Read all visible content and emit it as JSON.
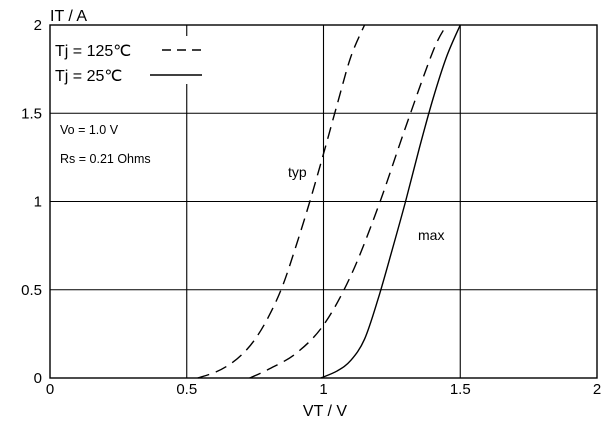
{
  "chart_data": {
    "type": "line",
    "xlabel": "VT / V",
    "ylabel": "IT / A",
    "xlim": [
      0,
      2
    ],
    "ylim": [
      0,
      2
    ],
    "x_ticks": [
      0,
      0.5,
      1,
      1.5,
      2
    ],
    "y_ticks": [
      0,
      0.5,
      1,
      1.5,
      2
    ],
    "x_tick_labels": [
      "0",
      "0.5",
      "1",
      "1.5",
      "2"
    ],
    "y_tick_labels": [
      "0",
      "0.5",
      "1",
      "1.5",
      "2"
    ],
    "grid": true,
    "legend_position": "top-left",
    "legend": [
      {
        "label": "Tj = 125℃",
        "style": "dashed"
      },
      {
        "label": "Tj = 25℃",
        "style": "solid"
      }
    ],
    "notes": [
      "Vo = 1.0 V",
      "Rs = 0.21 Ohms"
    ],
    "annotations": [
      {
        "text": "typ",
        "x": 0.92,
        "y": 1.15
      },
      {
        "text": "max",
        "x": 1.35,
        "y": 0.78
      }
    ],
    "series": [
      {
        "line_style": "dashed",
        "curve": "typ",
        "x": [
          0.54,
          0.6,
          0.65,
          0.7,
          0.75,
          0.8,
          0.85,
          0.9,
          0.95,
          1.0,
          1.05,
          1.1,
          1.15
        ],
        "y": [
          0,
          0.03,
          0.07,
          0.13,
          0.22,
          0.35,
          0.52,
          0.75,
          1.0,
          1.27,
          1.55,
          1.82,
          2.0
        ]
      },
      {
        "line_style": "dashed",
        "curve": "max",
        "x": [
          0.73,
          0.8,
          0.9,
          1.0,
          1.1,
          1.2,
          1.3,
          1.4,
          1.45
        ],
        "y": [
          0,
          0.05,
          0.14,
          0.3,
          0.58,
          0.97,
          1.42,
          1.85,
          2.0
        ]
      },
      {
        "line_style": "solid",
        "curve": "max",
        "x": [
          0.99,
          1.05,
          1.1,
          1.15,
          1.2,
          1.25,
          1.3,
          1.35,
          1.4,
          1.45,
          1.5
        ],
        "y": [
          0,
          0.04,
          0.1,
          0.22,
          0.45,
          0.72,
          1.0,
          1.3,
          1.58,
          1.82,
          2.0
        ]
      }
    ]
  }
}
